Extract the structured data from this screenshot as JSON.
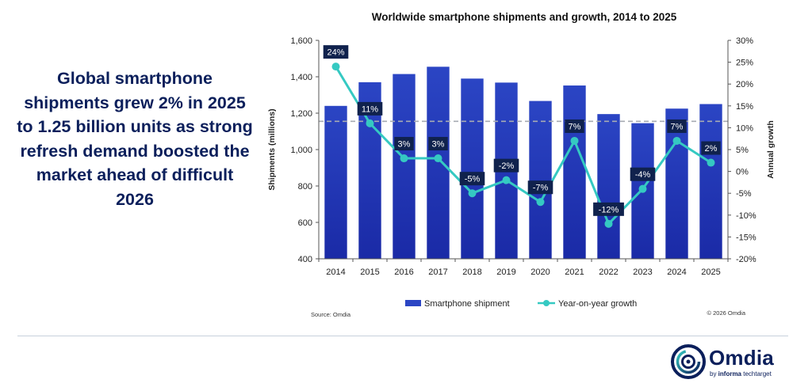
{
  "headline": "Global smartphone shipments grew 2% in 2025 to 1.25 billion units as strong refresh demand boosted the market ahead of difficult 2026",
  "brand": {
    "name": "Omdia",
    "tagline_prefix": "by ",
    "tagline_bold": "informa",
    "tagline_suffix": " techtarget"
  },
  "chart_data": {
    "type": "bar+line",
    "title": "Worldwide smartphone shipments and growth, 2014 to 2025",
    "categories": [
      "2014",
      "2015",
      "2016",
      "2017",
      "2018",
      "2019",
      "2020",
      "2021",
      "2022",
      "2023",
      "2024",
      "2025"
    ],
    "series": [
      {
        "name": "Smartphone shipment",
        "type": "bar",
        "axis": "left",
        "color": "#2b45c4",
        "values": [
          1240,
          1370,
          1415,
          1455,
          1390,
          1368,
          1267,
          1352,
          1195,
          1145,
          1225,
          1250
        ]
      },
      {
        "name": "Year-on-year growth",
        "type": "line",
        "axis": "right",
        "color": "#35c9c2",
        "values": [
          24,
          11,
          3,
          3,
          -5,
          -2,
          -7,
          7,
          -12,
          -4,
          7,
          2
        ],
        "labels": [
          "24%",
          "11%",
          "3%",
          "3%",
          "-5%",
          "-2%",
          "-7%",
          "7%",
          "-12%",
          "-4%",
          "7%",
          "2%"
        ]
      }
    ],
    "ylabel_left": "Shipments (millions)",
    "ylabel_right": "Annual growth",
    "ylim_left": [
      400,
      1600
    ],
    "yticks_left": [
      "1,600",
      "1,400",
      "1,200",
      "1,000",
      "800",
      "600",
      "400"
    ],
    "ylim_right": [
      -20,
      30
    ],
    "yticks_right": [
      "30%",
      "25%",
      "20%",
      "15%",
      "10%",
      "5%",
      "0%",
      "-5%",
      "-10%",
      "-15%",
      "-20%"
    ],
    "reference_line": {
      "axis": "left",
      "value": 1155,
      "style": "dashed",
      "color": "#9aa0aa"
    },
    "grid": false,
    "legend_position": "bottom",
    "source": "Source: Omdia",
    "copyright": "© 2026 Omdia"
  }
}
